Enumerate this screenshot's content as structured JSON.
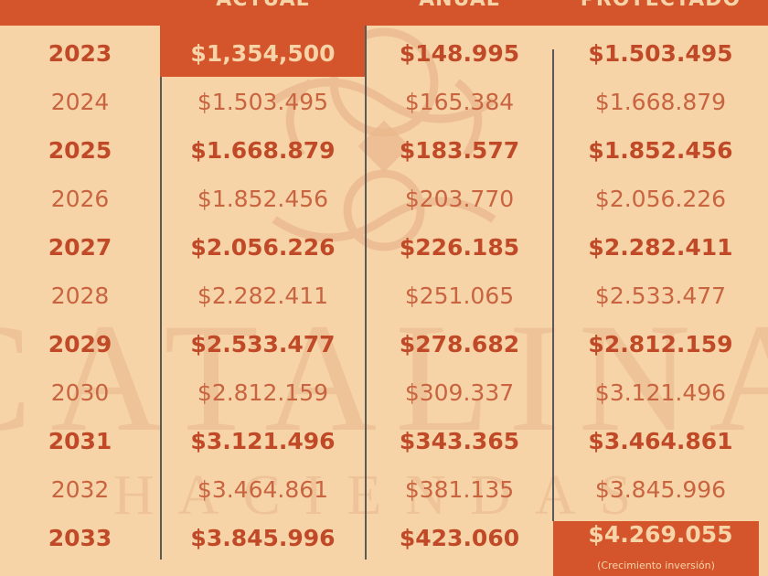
{
  "header": {
    "columns": [
      "ACTUAL",
      "ANUAL",
      "PROYECTADO"
    ]
  },
  "watermark": {
    "title": "CATALINA",
    "subtitle": "HACIENDAS"
  },
  "rows": [
    {
      "year": "2023",
      "actual": "$1,354,500",
      "anual": "$148.995",
      "proyectado": "$1.503.495"
    },
    {
      "year": "2024",
      "actual": "$1.503.495",
      "anual": "$165.384",
      "proyectado": "$1.668.879"
    },
    {
      "year": "2025",
      "actual": "$1.668.879",
      "anual": "$183.577",
      "proyectado": "$1.852.456"
    },
    {
      "year": "2026",
      "actual": "$1.852.456",
      "anual": "$203.770",
      "proyectado": "$2.056.226"
    },
    {
      "year": "2027",
      "actual": "$2.056.226",
      "anual": "$226.185",
      "proyectado": "$2.282.411"
    },
    {
      "year": "2028",
      "actual": "$2.282.411",
      "anual": "$251.065",
      "proyectado": "$2.533.477"
    },
    {
      "year": "2029",
      "actual": "$2.533.477",
      "anual": "$278.682",
      "proyectado": "$2.812.159"
    },
    {
      "year": "2030",
      "actual": "$2.812.159",
      "anual": "$309.337",
      "proyectado": "$3.121.496"
    },
    {
      "year": "2031",
      "actual": "$3.121.496",
      "anual": "$343.365",
      "proyectado": "$3.464.861"
    },
    {
      "year": "2032",
      "actual": "$3.464.861",
      "anual": "$381.135",
      "proyectado": "$3.845.996"
    },
    {
      "year": "2033",
      "actual": "$3.845.996",
      "anual": "$423.060",
      "proyectado": "$4.269.055"
    }
  ],
  "final_note": "(Crecimiento inversión)",
  "colors": {
    "background": "#f7d4a8",
    "accent": "#d4552c",
    "text": "#c04a27"
  }
}
